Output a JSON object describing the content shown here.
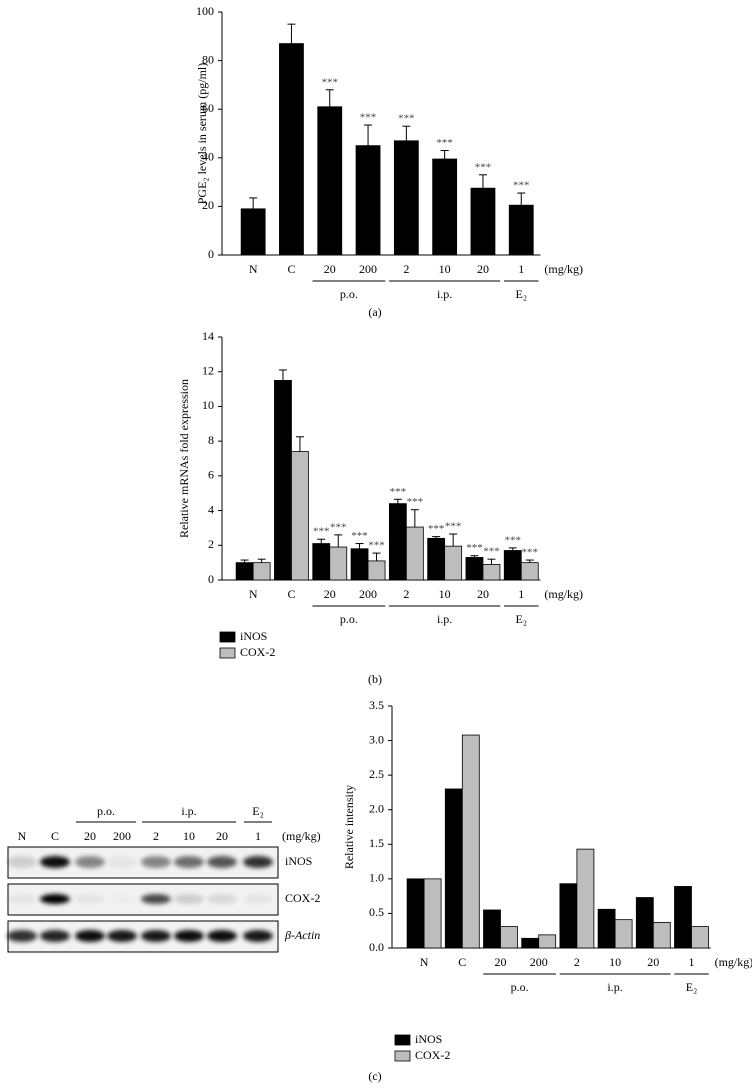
{
  "chart_data": [
    {
      "type": "bar",
      "panel_label": "(a)",
      "y_label": "PGE₂ levels in serum (pg/ml)",
      "categories": [
        "N",
        "C",
        "20",
        "200",
        "2",
        "10",
        "20",
        "1"
      ],
      "unit_label": "(mg/kg)",
      "groups": [
        "p.o.",
        "i.p.",
        "E₂"
      ],
      "values": [
        19,
        87,
        61,
        45,
        47,
        39.5,
        27.5,
        20.5
      ],
      "errors": [
        4.5,
        8,
        7,
        8.5,
        6,
        3.5,
        5.5,
        5
      ],
      "annotations": [
        null,
        null,
        "***",
        "***",
        "***",
        "***",
        "***",
        "***"
      ],
      "color": "#000000",
      "ylim": [
        0,
        100
      ],
      "yticks": [
        0,
        20,
        40,
        60,
        80,
        100
      ]
    },
    {
      "type": "bar",
      "panel_label": "(b)",
      "y_label": "Relative mRNAs fold expression",
      "categories": [
        "N",
        "C",
        "20",
        "200",
        "2",
        "10",
        "20",
        "1"
      ],
      "unit_label": "(mg/kg)",
      "groups": [
        "p.o.",
        "i.p.",
        "E₂"
      ],
      "series": [
        {
          "name": "iNOS",
          "color": "#000000",
          "values": [
            1.0,
            11.5,
            2.1,
            1.8,
            4.4,
            2.4,
            1.3,
            1.7
          ],
          "errors": [
            0.15,
            0.6,
            0.25,
            0.3,
            0.25,
            0.1,
            0.1,
            0.15
          ],
          "annotations": [
            null,
            null,
            "***",
            "***",
            "***",
            "***",
            "***",
            "***"
          ]
        },
        {
          "name": "COX-2",
          "color": "#bdbdbd",
          "values": [
            1.0,
            7.4,
            1.9,
            1.1,
            3.05,
            1.95,
            0.9,
            1.0
          ],
          "errors": [
            0.2,
            0.85,
            0.7,
            0.45,
            1.0,
            0.7,
            0.3,
            0.15
          ],
          "annotations": [
            null,
            null,
            "***",
            "***",
            "***",
            "***",
            "***",
            "***"
          ]
        }
      ],
      "ylim": [
        0,
        14
      ],
      "yticks": [
        0,
        2,
        4,
        6,
        8,
        10,
        12,
        14
      ]
    },
    {
      "type": "bar",
      "panel_label": "(c)",
      "y_label": "Relative intensity",
      "categories": [
        "N",
        "C",
        "20",
        "200",
        "2",
        "10",
        "20",
        "1"
      ],
      "unit_label": "(mg/kg)",
      "groups": [
        "p.o.",
        "i.p.",
        "E₂"
      ],
      "series": [
        {
          "name": "iNOS",
          "color": "#000000",
          "values": [
            1.0,
            2.3,
            0.55,
            0.14,
            0.93,
            0.56,
            0.73,
            0.89
          ]
        },
        {
          "name": "COX-2",
          "color": "#bdbdbd",
          "values": [
            1.0,
            3.08,
            0.31,
            0.19,
            1.43,
            0.41,
            0.37,
            0.31
          ]
        }
      ],
      "ylim": [
        0,
        3.5
      ],
      "yticks": [
        {
          "value": 0,
          "label": "0.0"
        },
        {
          "value": 0.5,
          "label": "0.5"
        },
        {
          "value": 1,
          "label": "1.0"
        },
        {
          "value": 1.5,
          "label": "1.5"
        },
        {
          "value": 2,
          "label": "2.0"
        },
        {
          "value": 2.5,
          "label": "2.5"
        },
        {
          "value": 3,
          "label": "3.0"
        },
        {
          "value": 3.5,
          "label": "3.5"
        }
      ]
    }
  ],
  "blot": {
    "lanes": [
      "N",
      "C",
      "20",
      "200",
      "2",
      "10",
      "20",
      "1"
    ],
    "unit_label": "(mg/kg)",
    "groups": [
      "p.o.",
      "i.p.",
      "E₂"
    ],
    "rows": [
      "iNOS",
      "COX-2",
      "β-Actin"
    ]
  }
}
